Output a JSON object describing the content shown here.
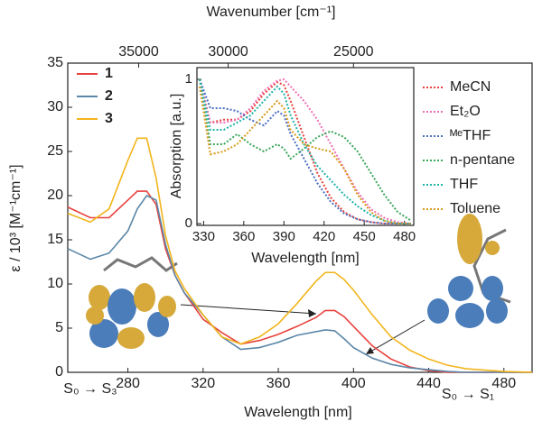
{
  "chart_data": [
    {
      "type": "line",
      "xlabel": "Wavelength [nm]",
      "ylabel": "ε / 10³ [M⁻¹cm⁻¹]",
      "x2label": "Wavenumber [cm⁻¹]",
      "x": [
        248,
        260,
        270,
        280,
        285,
        290,
        295,
        300,
        305,
        310,
        320,
        330,
        340,
        350,
        360,
        370,
        380,
        385,
        390,
        395,
        400,
        410,
        420,
        430,
        440,
        450,
        460,
        480,
        495
      ],
      "series": [
        {
          "name": "1",
          "color": "#e8413c",
          "values": [
            18.7,
            17.5,
            17.5,
            19.5,
            20.5,
            20.5,
            19,
            14,
            11,
            9,
            6,
            4.5,
            3.2,
            3.6,
            4.3,
            5.2,
            6.2,
            7,
            7,
            6.3,
            5.2,
            3,
            1.5,
            0.6,
            0.2,
            0,
            0,
            0,
            0
          ]
        },
        {
          "name": "2",
          "color": "#5b87a8",
          "values": [
            14,
            12.8,
            13.5,
            16,
            18.5,
            20,
            19.5,
            14.5,
            11,
            9,
            6.5,
            4,
            2.6,
            2.8,
            3.4,
            4.2,
            4.6,
            4.8,
            4.7,
            3.8,
            2.8,
            1.6,
            0.9,
            0.5,
            0.3,
            0.1,
            0,
            0,
            0
          ]
        },
        {
          "name": "3",
          "color": "#f2b51c",
          "values": [
            18,
            17,
            18.5,
            24,
            26.5,
            26.5,
            22,
            15.5,
            11.5,
            9.5,
            6.5,
            4,
            3.2,
            4,
            5.5,
            7.8,
            10.3,
            11.3,
            11.3,
            10.5,
            9.3,
            6.5,
            4,
            2.5,
            1.5,
            0.8,
            0.4,
            0.1,
            0
          ]
        }
      ],
      "xlim": [
        248,
        495
      ],
      "ylim": [
        0,
        35
      ],
      "xticks": [
        280,
        320,
        360,
        400,
        440,
        480
      ],
      "yticks": [
        0,
        5,
        10,
        15,
        20,
        25,
        30,
        35
      ],
      "x2ticks": [
        35000,
        30000,
        25000
      ],
      "annotations": [
        "S₀ → S₃",
        "S₀ → S₁"
      ]
    },
    {
      "type": "line",
      "xlabel": "Wavelength [nm]",
      "ylabel": "Absorption [a.u.]",
      "line_style": "dotted",
      "x": [
        327,
        335,
        345,
        355,
        365,
        375,
        385,
        390,
        395,
        405,
        415,
        425,
        435,
        445,
        455,
        465,
        475,
        485
      ],
      "series": [
        {
          "name": "MeCN",
          "color": "#e8413c",
          "values": [
            1,
            0.7,
            0.72,
            0.72,
            0.78,
            0.9,
            0.98,
            0.96,
            0.85,
            0.6,
            0.35,
            0.18,
            0.08,
            0.03,
            0.01,
            0,
            0,
            0
          ]
        },
        {
          "name": "Et₂O",
          "color": "#ee6fb4",
          "values": [
            1,
            0.7,
            0.7,
            0.72,
            0.8,
            0.92,
            0.99,
            1,
            0.95,
            0.85,
            0.72,
            0.55,
            0.38,
            0.22,
            0.1,
            0.04,
            0.01,
            0
          ]
        },
        {
          "name": "ᴹᵉTHF",
          "color": "#4b6fc2",
          "values": [
            1,
            0.8,
            0.8,
            0.78,
            0.72,
            0.68,
            0.78,
            0.75,
            0.62,
            0.45,
            0.28,
            0.15,
            0.07,
            0.03,
            0.01,
            0,
            0,
            0
          ]
        },
        {
          "name": "n-pentane",
          "color": "#3aa65a",
          "values": [
            1,
            0.55,
            0.55,
            0.62,
            0.55,
            0.5,
            0.55,
            0.52,
            0.45,
            0.52,
            0.6,
            0.64,
            0.6,
            0.5,
            0.35,
            0.2,
            0.08,
            0.02
          ]
        },
        {
          "name": "THF",
          "color": "#1fb3a8",
          "values": [
            1,
            0.65,
            0.65,
            0.7,
            0.75,
            0.85,
            0.95,
            0.9,
            0.75,
            0.55,
            0.4,
            0.3,
            0.2,
            0.12,
            0.06,
            0.02,
            0,
            0
          ]
        },
        {
          "name": "Toluene",
          "color": "#d99a1c",
          "values": [
            0.95,
            0.48,
            0.5,
            0.55,
            0.65,
            0.75,
            0.85,
            0.8,
            0.65,
            0.55,
            0.52,
            0.5,
            0.38,
            0.2,
            0.08,
            0.02,
            0,
            0
          ]
        }
      ],
      "xlim": [
        325,
        487
      ],
      "ylim": [
        0,
        1
      ],
      "xticks": [
        330,
        360,
        390,
        420,
        450,
        480
      ],
      "yticks": [
        0,
        1
      ]
    }
  ]
}
